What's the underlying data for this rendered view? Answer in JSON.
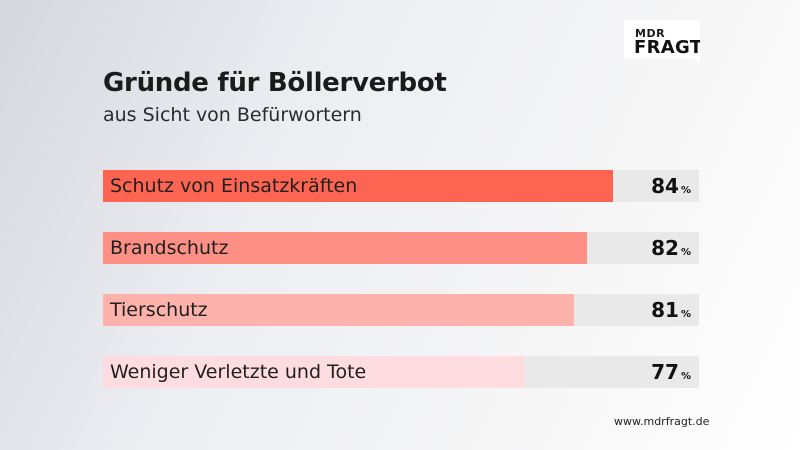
{
  "brand": {
    "top": "MDR",
    "bottom": "FRAGT"
  },
  "header": {
    "title": "Gründe für Böllerverbot",
    "subtitle": "aus Sicht von Befürwortern"
  },
  "footer": {
    "source": "www.mdrfragt.de"
  },
  "chart_data": {
    "type": "bar",
    "orientation": "horizontal",
    "title": "Gründe für Böllerverbot",
    "subtitle": "aus Sicht von Befürwortern",
    "categories": [
      "Schutz von Einsatzkräften",
      "Brandschutz",
      "Tierschutz",
      "Weniger Verletzte und Tote"
    ],
    "values": [
      84,
      82,
      81,
      77
    ],
    "unit": "%",
    "xlim": [
      0,
      100
    ],
    "grid": false,
    "legend": "none",
    "bar_colors": [
      "#fd6552",
      "#fd8f85",
      "#fdb2ab",
      "#fedcdf"
    ],
    "track_color": "#e9e9ea"
  }
}
